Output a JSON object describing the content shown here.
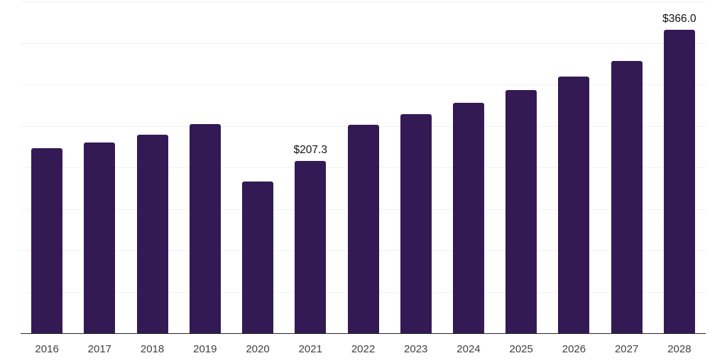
{
  "chart_data": {
    "type": "bar",
    "title": "",
    "xlabel": "",
    "ylabel": "",
    "categories": [
      "2016",
      "2017",
      "2018",
      "2019",
      "2020",
      "2021",
      "2022",
      "2023",
      "2024",
      "2025",
      "2026",
      "2027",
      "2028"
    ],
    "values": [
      223,
      230,
      239,
      252,
      183,
      207.3,
      251,
      264,
      278,
      293,
      309,
      328,
      366
    ],
    "annotations": [
      {
        "category": "2021",
        "label": "$207.3"
      },
      {
        "category": "2028",
        "label": "$366.0"
      }
    ],
    "ylim": [
      0,
      400
    ],
    "gridline_step": 50,
    "grid": "horizontal",
    "legend": "none",
    "y_axis_labels_visible": false
  },
  "colors": {
    "bar": "#331A55",
    "grid": "#f1f1f1",
    "axis": "#262626",
    "tick_label": "#404040",
    "value_label": "#111111",
    "background": "#ffffff"
  }
}
